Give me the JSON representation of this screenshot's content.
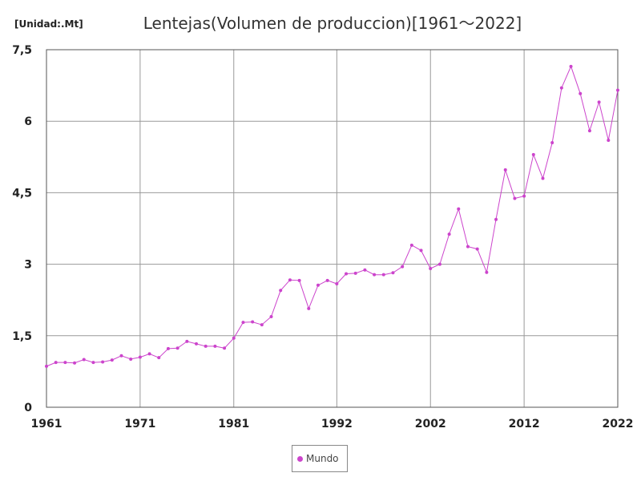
{
  "chart_data": {
    "type": "line",
    "title": "Lentejas(Volumen de produccion)[1961～2022]",
    "unit_label": "[Unidad:.Mt]",
    "xlim": [
      1961,
      2022
    ],
    "ylim": [
      0,
      7.5
    ],
    "x_ticks": [
      1961,
      1971,
      1981,
      1992,
      2002,
      2012,
      2022
    ],
    "y_ticks": [
      {
        "value": 0,
        "label": "0"
      },
      {
        "value": 1.5,
        "label": "1,5"
      },
      {
        "value": 3,
        "label": "3"
      },
      {
        "value": 4.5,
        "label": "4,5"
      },
      {
        "value": 6,
        "label": "6"
      },
      {
        "value": 7.5,
        "label": "7,5"
      }
    ],
    "grid": true,
    "legend_position": "bottom",
    "color": "#cc44cc",
    "series": [
      {
        "name": "Mundo",
        "x": [
          1961,
          1962,
          1963,
          1964,
          1965,
          1966,
          1967,
          1968,
          1969,
          1970,
          1971,
          1972,
          1973,
          1974,
          1975,
          1976,
          1977,
          1978,
          1979,
          1980,
          1981,
          1982,
          1983,
          1984,
          1985,
          1986,
          1987,
          1988,
          1989,
          1990,
          1991,
          1992,
          1993,
          1994,
          1995,
          1996,
          1997,
          1998,
          1999,
          2000,
          2001,
          2002,
          2003,
          2004,
          2005,
          2006,
          2007,
          2008,
          2009,
          2010,
          2011,
          2012,
          2013,
          2014,
          2015,
          2016,
          2017,
          2018,
          2019,
          2020,
          2021,
          2022
        ],
        "values": [
          0.86,
          0.94,
          0.94,
          0.93,
          1.0,
          0.94,
          0.95,
          0.99,
          1.08,
          1.01,
          1.05,
          1.12,
          1.04,
          1.23,
          1.24,
          1.38,
          1.33,
          1.28,
          1.28,
          1.24,
          1.45,
          1.78,
          1.79,
          1.73,
          1.9,
          2.45,
          2.67,
          2.66,
          2.07,
          2.56,
          2.66,
          2.59,
          2.8,
          2.81,
          2.88,
          2.78,
          2.78,
          2.82,
          2.95,
          3.4,
          3.29,
          2.91,
          3.0,
          3.63,
          4.16,
          3.37,
          3.32,
          2.83,
          3.94,
          4.98,
          4.38,
          4.43,
          5.3,
          4.8,
          5.55,
          6.7,
          7.15,
          6.58,
          5.8,
          6.4,
          5.6,
          6.65
        ]
      }
    ]
  }
}
